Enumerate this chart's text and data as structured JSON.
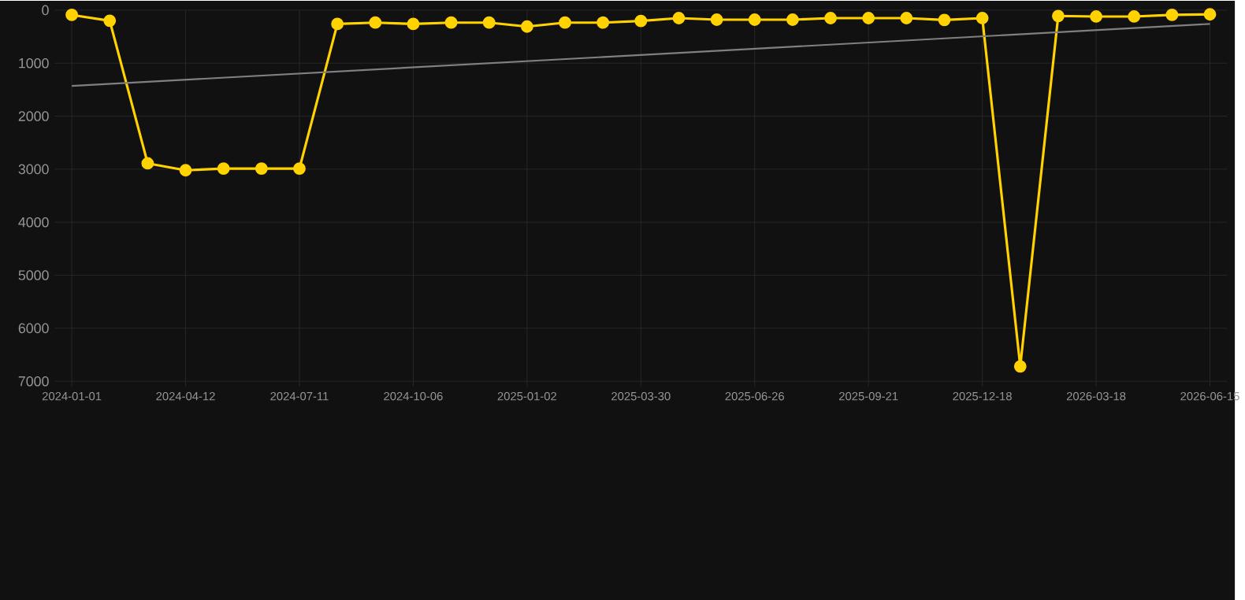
{
  "chart_data": {
    "type": "line",
    "categories": [
      "2024-01-01",
      null,
      null,
      "2024-04-12",
      null,
      null,
      "2024-07-11",
      null,
      null,
      "2024-10-06",
      null,
      null,
      "2025-01-02",
      null,
      null,
      "2025-03-30",
      null,
      null,
      "2025-06-26",
      null,
      null,
      "2025-09-21",
      null,
      null,
      "2025-12-18",
      null,
      null,
      "2026-03-18",
      null,
      null,
      "2026-06-15"
    ],
    "series": [
      {
        "color": "#ffd200",
        "marker": "circle",
        "values": [
          90,
          200,
          2890,
          3020,
          2990,
          2990,
          2990,
          260,
          235,
          260,
          235,
          235,
          310,
          235,
          235,
          205,
          150,
          180,
          180,
          180,
          150,
          150,
          150,
          185,
          150,
          6720,
          110,
          120,
          120,
          90,
          80
        ]
      },
      {
        "type": "line",
        "color": "#808080",
        "marker": "none",
        "values": [
          1430,
          null,
          null,
          null,
          null,
          null,
          null,
          null,
          null,
          null,
          null,
          null,
          null,
          null,
          null,
          null,
          null,
          null,
          null,
          null,
          null,
          null,
          null,
          null,
          null,
          null,
          null,
          null,
          null,
          null,
          260
        ]
      }
    ],
    "ylim": [
      7100,
      0
    ],
    "yticks": [
      0,
      1000,
      2000,
      3000,
      4000,
      5000,
      6000,
      7000
    ],
    "grid": true
  }
}
